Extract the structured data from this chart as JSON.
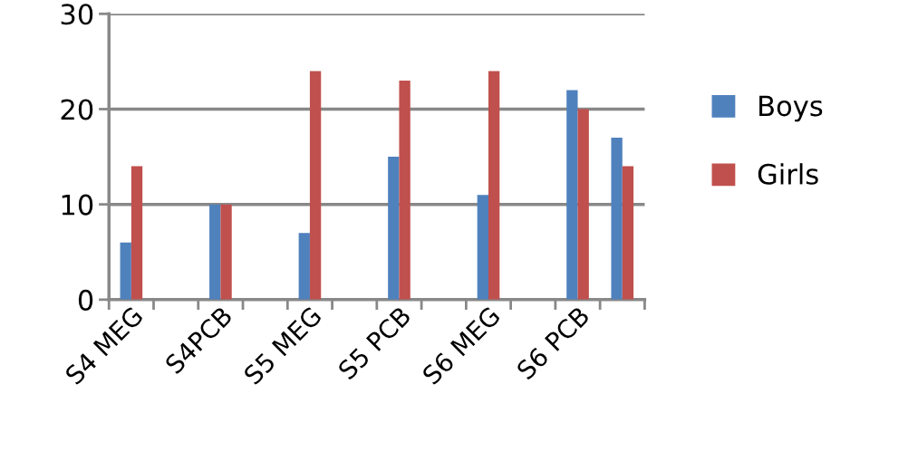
{
  "chart_data": {
    "type": "bar",
    "categories": [
      "S4 MEG",
      null,
      "S4PCB",
      null,
      "S5 MEG",
      null,
      "S5 PCB",
      null,
      "S6 MEG",
      null,
      "S6 PCB",
      null
    ],
    "series": [
      {
        "name": "Boys",
        "color": "#4f81bd",
        "values": [
          6,
          null,
          10,
          null,
          7,
          null,
          15,
          null,
          11,
          null,
          22,
          17
        ]
      },
      {
        "name": "Girls",
        "color": "#c0504d",
        "values": [
          14,
          null,
          10,
          null,
          24,
          null,
          23,
          null,
          24,
          null,
          20,
          14
        ]
      }
    ],
    "ylim": [
      0,
      30
    ],
    "yticks": [
      0,
      10,
      20,
      30
    ],
    "grid": "y",
    "legend": "right"
  }
}
